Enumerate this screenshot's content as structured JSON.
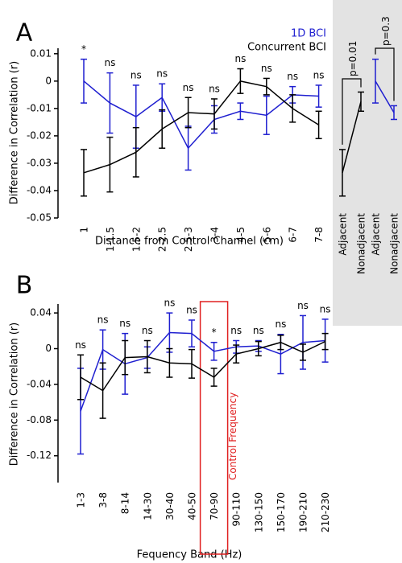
{
  "chart_data": [
    {
      "type": "line",
      "label": "A",
      "x_label": "Distance from Control Channel (cm)",
      "y_label": "Difference in Correlation (r)",
      "categories": [
        "1",
        "1-1.5",
        "1.5-2",
        "2-2.5",
        "2.5-3",
        "3-4",
        "4-5",
        "5-6",
        "6-7",
        "7-8"
      ],
      "annotations": [
        "*",
        "ns",
        "ns",
        "ns",
        "ns",
        "ns",
        "ns",
        "ns",
        "ns",
        "ns"
      ],
      "ylim": [
        -0.05,
        0.012
      ],
      "yticks": [
        0.01,
        0,
        -0.01,
        -0.02,
        -0.03,
        -0.04,
        -0.05
      ],
      "series": [
        {
          "name": "1D BCI",
          "color": "#1f1fd0",
          "values": [
            0,
            -0.008,
            -0.013,
            -0.006,
            -0.0245,
            -0.014,
            -0.011,
            -0.0125,
            -0.005,
            -0.0055
          ],
          "errors": [
            0.008,
            0.011,
            0.0115,
            0.005,
            0.008,
            0.005,
            0.003,
            0.007,
            0.003,
            0.004
          ]
        },
        {
          "name": "Concurrent BCI",
          "color": "#000000",
          "values": [
            -0.0335,
            -0.0305,
            -0.026,
            -0.0175,
            -0.0115,
            -0.012,
            0,
            -0.002,
            -0.01,
            -0.016
          ],
          "errors": [
            0.0085,
            0.01,
            0.009,
            0.007,
            0.0055,
            0.0055,
            0.0045,
            0.003,
            0.005,
            0.005
          ]
        }
      ]
    },
    {
      "type": "line",
      "label": "B",
      "x_label": "Fequency Band (Hz)",
      "y_label": "Difference in Correlation (r)",
      "categories": [
        "1-3",
        "3-8",
        "8-14",
        "14-30",
        "30-40",
        "40-50",
        "70-90",
        "90-110",
        "130-150",
        "150-170",
        "190-210",
        "210-230"
      ],
      "annotations": [
        "ns",
        "ns",
        "ns",
        "ns",
        "ns",
        "ns",
        "*",
        "ns",
        "ns",
        "ns",
        "ns",
        "ns"
      ],
      "highlight": {
        "category": "70-90",
        "label": "Control Frequency",
        "color": "#e02020"
      },
      "ylim": [
        -0.15,
        0.05
      ],
      "yticks": [
        0.04,
        0,
        -0.04,
        -0.08,
        -0.12
      ],
      "series": [
        {
          "color": "#1f1fd0",
          "values": [
            -0.07,
            -0.001,
            -0.017,
            -0.01,
            0.018,
            0.017,
            -0.003,
            0.002,
            0.003,
            -0.006,
            0.007,
            0.009
          ],
          "errors": [
            0.048,
            0.022,
            0.034,
            0.012,
            0.022,
            0.015,
            0.01,
            0.007,
            0.006,
            0.022,
            0.03,
            0.024
          ]
        },
        {
          "color": "#000000",
          "values": [
            -0.032,
            -0.047,
            -0.01,
            -0.009,
            -0.016,
            -0.017,
            -0.032,
            -0.006,
            0,
            0.007,
            -0.004,
            0.008
          ],
          "errors": [
            0.025,
            0.031,
            0.019,
            0.018,
            0.016,
            0.016,
            0.01,
            0.01,
            0.008,
            0.008,
            0.009,
            0.009
          ]
        }
      ]
    },
    {
      "type": "pair",
      "categories": [
        "Adjacent",
        "Nonadjacent"
      ],
      "ylim": [
        -0.05,
        0.012
      ],
      "series": [
        {
          "color": "#000000",
          "values": [
            -0.0335,
            -0.0075
          ],
          "errors": [
            0.0085,
            0.0035
          ],
          "p_label": "p=0.01"
        },
        {
          "color": "#1f1fd0",
          "values": [
            0,
            -0.0115
          ],
          "errors": [
            0.008,
            0.0025
          ],
          "p_label": "p=0.3"
        }
      ]
    }
  ]
}
